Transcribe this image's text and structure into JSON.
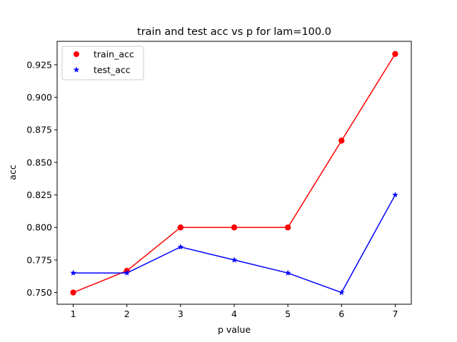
{
  "chart_data": {
    "type": "line",
    "title": "train and test acc vs p for lam=100.0",
    "xlabel": "p value",
    "ylabel": "acc",
    "x": [
      1,
      2,
      3,
      4,
      5,
      6,
      7
    ],
    "xticks": [
      "1",
      "2",
      "3",
      "4",
      "5",
      "6",
      "7"
    ],
    "yticks": [
      "0.750",
      "0.775",
      "0.800",
      "0.825",
      "0.850",
      "0.875",
      "0.900",
      "0.925"
    ],
    "xlim": [
      0.7,
      7.3
    ],
    "ylim": [
      0.741,
      0.943
    ],
    "grid": false,
    "legend_position": "top-left",
    "series": [
      {
        "name": "train_acc",
        "values": [
          0.75,
          0.7667,
          0.8,
          0.8,
          0.8,
          0.8667,
          0.9333
        ],
        "color": "#ff0000",
        "marker": "circle"
      },
      {
        "name": "test_acc",
        "values": [
          0.765,
          0.765,
          0.785,
          0.775,
          0.765,
          0.75,
          0.825
        ],
        "color": "#0000ff",
        "marker": "star"
      }
    ]
  }
}
